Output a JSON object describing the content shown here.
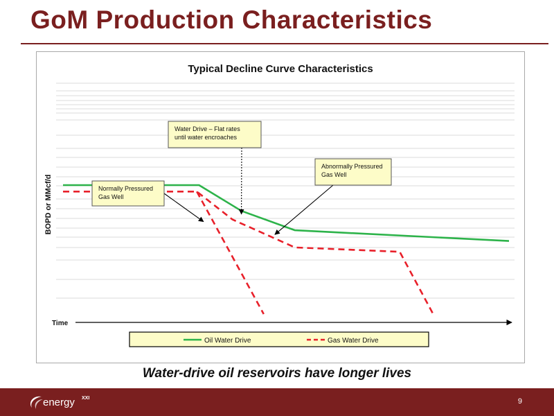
{
  "slide": {
    "title": "GoM Production Characteristics",
    "subtitle": "Water-drive oil reservoirs have longer lives",
    "page_number": "9",
    "logo_text": "energy",
    "logo_sup": "XXI"
  },
  "colors": {
    "accent": "#7a1f1f",
    "oil_series": "#2db34a",
    "gas_series": "#e8202a",
    "callout_fill": "#fdfcc8"
  },
  "chart_data": {
    "type": "line",
    "title": "Typical Decline Curve Characteristics",
    "xlabel": "Time",
    "ylabel": "BOPD or MMcf/d",
    "xlim": [
      0,
      100
    ],
    "ylim": [
      0,
      100
    ],
    "grid": true,
    "axes_numbered": false,
    "legend_position": "bottom",
    "series": [
      {
        "name": "Oil Water Drive",
        "style": "solid",
        "color": "#2db34a",
        "points": [
          [
            0,
            60
          ],
          [
            30.5,
            60
          ],
          [
            40,
            48
          ],
          [
            52,
            39
          ],
          [
            100,
            34
          ]
        ]
      },
      {
        "name": "Gas Water Drive",
        "style": "dashed",
        "color": "#e8202a",
        "points": [
          [
            0,
            57
          ],
          [
            30,
            57
          ],
          [
            38,
            44
          ],
          [
            52,
            31
          ],
          [
            75.5,
            29
          ],
          [
            83,
            0
          ]
        ]
      },
      {
        "name": "",
        "style": "dashed",
        "color": "#e8202a",
        "points": [
          [
            30,
            57
          ],
          [
            45,
            0
          ]
        ]
      }
    ],
    "annotations": [
      {
        "id": "normally-pressured",
        "lines": [
          "Normally Pressured",
          "Gas Well"
        ],
        "arrow_to": [
          31.5,
          43
        ],
        "arrow_style": "solid"
      },
      {
        "id": "water-drive",
        "lines": [
          "Water Drive –  Flat rates",
          "until water encroaches"
        ],
        "arrow_to": [
          40,
          46.5
        ],
        "arrow_style": "dotted"
      },
      {
        "id": "abnormally-pressured",
        "lines": [
          "Abnormally Pressured",
          "Gas Well"
        ],
        "arrow_to": [
          47.5,
          37
        ],
        "arrow_style": "solid"
      }
    ]
  }
}
